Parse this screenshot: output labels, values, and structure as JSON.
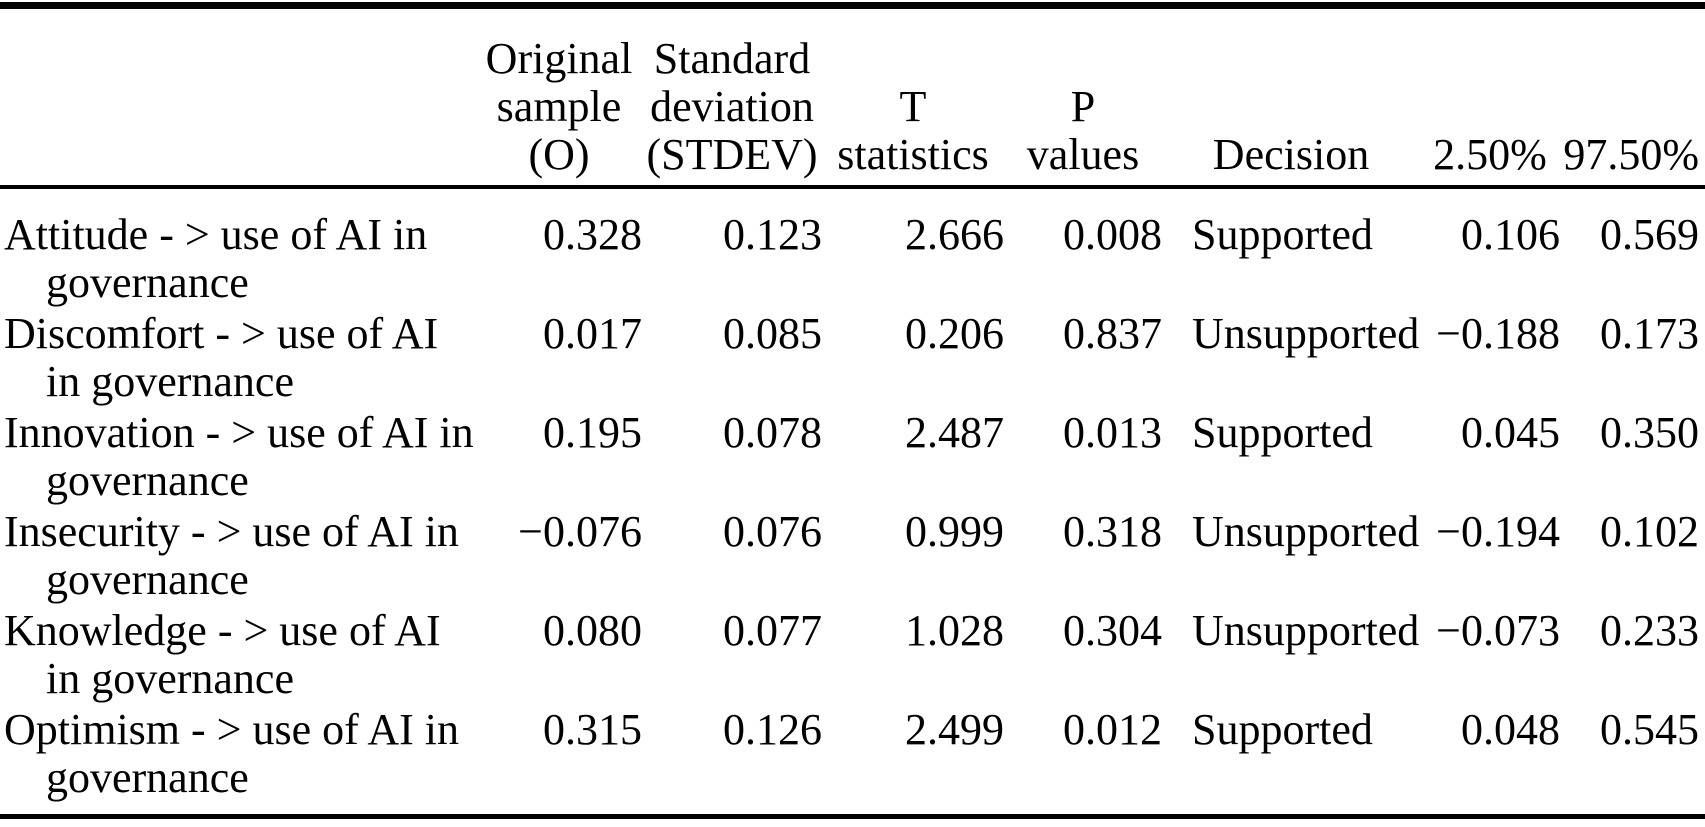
{
  "table": {
    "colors": {
      "text": "#000000",
      "background": "#ffffff",
      "rule": "#000000"
    },
    "header": {
      "label": "",
      "o": [
        "Original",
        "sample",
        "(O)"
      ],
      "stdev": [
        "Standard",
        "deviation",
        "(STDEV)"
      ],
      "t": [
        "T",
        "statistics"
      ],
      "p": [
        "P",
        "values"
      ],
      "decision": [
        "Decision"
      ],
      "ci_low": [
        "2.50%"
      ],
      "ci_high": [
        "97.50%"
      ]
    },
    "rows": [
      {
        "label": "Attitude - > use of AI in governance",
        "o": "0.328",
        "stdev": "0.123",
        "t": "2.666",
        "p": "0.008",
        "decision": "Supported",
        "ci_low": "0.106",
        "ci_high": "0.569"
      },
      {
        "label": "Discomfort - > use of AI in governance",
        "o": "0.017",
        "stdev": "0.085",
        "t": "0.206",
        "p": "0.837",
        "decision": "Unsupported",
        "ci_low": "−0.188",
        "ci_high": "0.173"
      },
      {
        "label": "Innovation - > use of AI in governance",
        "o": "0.195",
        "stdev": "0.078",
        "t": "2.487",
        "p": "0.013",
        "decision": "Supported",
        "ci_low": "0.045",
        "ci_high": "0.350"
      },
      {
        "label": "Insecurity - > use of AI in governance",
        "o": "−0.076",
        "stdev": "0.076",
        "t": "0.999",
        "p": "0.318",
        "decision": "Unsupported",
        "ci_low": "−0.194",
        "ci_high": "0.102"
      },
      {
        "label": "Knowledge - > use of AI in governance",
        "o": "0.080",
        "stdev": "0.077",
        "t": "1.028",
        "p": "0.304",
        "decision": "Unsupported",
        "ci_low": "−0.073",
        "ci_high": "0.233"
      },
      {
        "label": "Optimism - > use of AI in governance",
        "o": "0.315",
        "stdev": "0.126",
        "t": "2.499",
        "p": "0.012",
        "decision": "Supported",
        "ci_low": "0.048",
        "ci_high": "0.545"
      }
    ]
  }
}
